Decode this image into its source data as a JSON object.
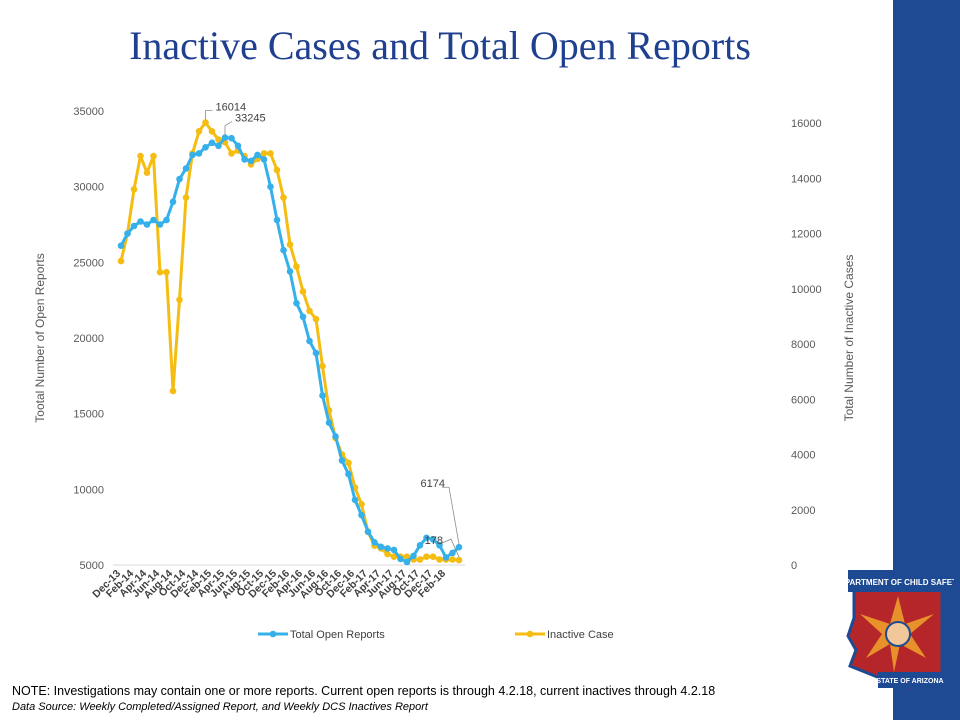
{
  "title": "Inactive Cases and Total Open Reports",
  "note": "NOTE: Investigations may contain one or more reports. Current open reports is through 4.2.18, current inactives through 4.2.18",
  "source": "Data Source: Weekly Completed/Assigned Report, and Weekly DCS Inactives Report",
  "logo": {
    "top_text": "DEPARTMENT OF CHILD SAFETY",
    "bottom_text": "STATE OF ARIZONA"
  },
  "colors": {
    "title": "#1f3f8f",
    "sidebar": "#1e4a94",
    "open_reports": "#35b0ea",
    "inactive": "#f5bd12"
  },
  "chart_data": {
    "type": "line",
    "ylabel_left": "Tootal Number of Open Reports",
    "ylabel_right": "Total Number of Inactive Cases",
    "ylim_left": [
      5000,
      35000
    ],
    "ylim_right": [
      0,
      16000
    ],
    "yticks_left": [
      "5000",
      "10000",
      "15000",
      "20000",
      "25000",
      "30000",
      "35000"
    ],
    "yticks_right": [
      "0",
      "2000",
      "4000",
      "6000",
      "8000",
      "10000",
      "12000",
      "14000",
      "16000"
    ],
    "x_tick_labels": [
      "Dec-13",
      "Feb-14",
      "Apr-14",
      "Jun-14",
      "Aug-14",
      "Oct-14",
      "Dec-14",
      "Feb-15",
      "Apr-15",
      "Jun-15",
      "Aug-15",
      "Oct-15",
      "Dec-15",
      "Feb-16",
      "Apr-16",
      "Jun-16",
      "Aug-16",
      "Oct-16",
      "Dec-16",
      "Feb-17",
      "Apr-17",
      "Jun-17",
      "Aug-17",
      "Oct-17",
      "Dec-17",
      "Feb-18"
    ],
    "legend_position": "bottom",
    "grid": false,
    "series": [
      {
        "name": "Total Open Reports",
        "axis": "left",
        "values": [
          26100,
          26900,
          27400,
          27700,
          27500,
          27800,
          27500,
          27800,
          29000,
          30500,
          31200,
          32100,
          32200,
          32600,
          32900,
          32700,
          33245,
          33200,
          32700,
          31800,
          31700,
          32100,
          31800,
          30000,
          27800,
          25800,
          24400,
          22300,
          21400,
          19800,
          19000,
          16200,
          14400,
          13500,
          11900,
          11000,
          9300,
          8300,
          7200,
          6500,
          6200,
          6100,
          6000,
          5400,
          5200,
          5600,
          6300,
          6800,
          6700,
          6300,
          5500,
          5800,
          6174
        ]
      },
      {
        "name": "Inactive Case",
        "axis": "right",
        "values": [
          11000,
          12000,
          13600,
          14800,
          14200,
          14800,
          10600,
          10600,
          6300,
          9600,
          13300,
          14900,
          15700,
          16014,
          15700,
          15400,
          15300,
          14900,
          15000,
          14800,
          14500,
          14700,
          14900,
          14900,
          14300,
          13300,
          11600,
          10800,
          9900,
          9200,
          8900,
          7200,
          5600,
          4600,
          4000,
          3700,
          2800,
          2200,
          1200,
          700,
          600,
          400,
          300,
          300,
          300,
          200,
          200,
          300,
          300,
          200,
          200,
          200,
          178
        ]
      }
    ],
    "annotations": [
      {
        "text": "16014",
        "series": 1,
        "index": 13
      },
      {
        "text": "33245",
        "series": 0,
        "index": 16
      },
      {
        "text": "6174",
        "series": 0,
        "index": 52
      },
      {
        "text": "178",
        "series": 1,
        "index": 52
      }
    ]
  }
}
